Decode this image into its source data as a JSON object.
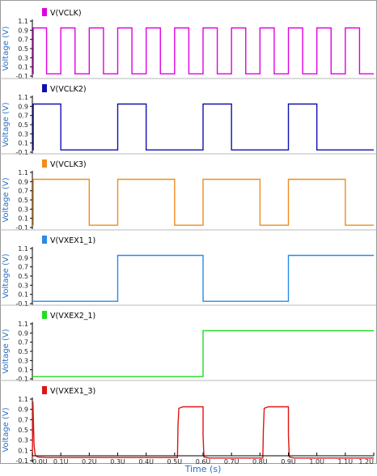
{
  "chart_data": {
    "type": "line",
    "xlabel": "Time (s)",
    "x_ticks": [
      "0.0U",
      "0.1U",
      "0.2U",
      "0.3U",
      "0.4U",
      "0.5U",
      "0.6U",
      "0.7U",
      "0.8U",
      "0.9U",
      "1.0U",
      "1.1U",
      "1.2U"
    ],
    "xlim": [
      0,
      1.2
    ],
    "ylabel": "Voltage (V)",
    "y_ticks": [
      "1.1",
      "0.9",
      "0.7",
      "0.5",
      "0.3",
      "0.1",
      "-0.1"
    ],
    "ylim": [
      -0.1,
      1.1
    ],
    "panels": [
      {
        "name": "V(VCLK)",
        "color": "#e000e0",
        "points": [
          [
            0,
            -0.05
          ],
          [
            0.003,
            -0.05
          ],
          [
            0.003,
            0.95
          ],
          [
            0.05,
            0.95
          ],
          [
            0.05,
            -0.05
          ],
          [
            0.1,
            -0.05
          ],
          [
            0.1,
            0.95
          ],
          [
            0.15,
            0.95
          ],
          [
            0.15,
            -0.05
          ],
          [
            0.2,
            -0.05
          ],
          [
            0.2,
            0.95
          ],
          [
            0.25,
            0.95
          ],
          [
            0.25,
            -0.05
          ],
          [
            0.3,
            -0.05
          ],
          [
            0.3,
            0.95
          ],
          [
            0.35,
            0.95
          ],
          [
            0.35,
            -0.05
          ],
          [
            0.4,
            -0.05
          ],
          [
            0.4,
            0.95
          ],
          [
            0.45,
            0.95
          ],
          [
            0.45,
            -0.05
          ],
          [
            0.5,
            -0.05
          ],
          [
            0.5,
            0.95
          ],
          [
            0.55,
            0.95
          ],
          [
            0.55,
            -0.05
          ],
          [
            0.6,
            -0.05
          ],
          [
            0.6,
            0.95
          ],
          [
            0.65,
            0.95
          ],
          [
            0.65,
            -0.05
          ],
          [
            0.7,
            -0.05
          ],
          [
            0.7,
            0.95
          ],
          [
            0.75,
            0.95
          ],
          [
            0.75,
            -0.05
          ],
          [
            0.8,
            -0.05
          ],
          [
            0.8,
            0.95
          ],
          [
            0.85,
            0.95
          ],
          [
            0.85,
            -0.05
          ],
          [
            0.9,
            -0.05
          ],
          [
            0.9,
            0.95
          ],
          [
            0.95,
            0.95
          ],
          [
            0.95,
            -0.05
          ],
          [
            1.0,
            -0.05
          ],
          [
            1.0,
            0.95
          ],
          [
            1.05,
            0.95
          ],
          [
            1.05,
            -0.05
          ],
          [
            1.1,
            -0.05
          ],
          [
            1.1,
            0.95
          ],
          [
            1.15,
            0.95
          ],
          [
            1.15,
            -0.05
          ],
          [
            1.2,
            -0.05
          ]
        ]
      },
      {
        "name": "V(VCLK2)",
        "color": "#1010b0",
        "points": [
          [
            0,
            -0.05
          ],
          [
            0.003,
            -0.05
          ],
          [
            0.003,
            0.95
          ],
          [
            0.1,
            0.95
          ],
          [
            0.1,
            -0.05
          ],
          [
            0.3,
            -0.05
          ],
          [
            0.3,
            0.95
          ],
          [
            0.4,
            0.95
          ],
          [
            0.4,
            -0.05
          ],
          [
            0.6,
            -0.05
          ],
          [
            0.6,
            0.95
          ],
          [
            0.7,
            0.95
          ],
          [
            0.7,
            -0.05
          ],
          [
            0.9,
            -0.05
          ],
          [
            0.9,
            0.95
          ],
          [
            1.0,
            0.95
          ],
          [
            1.0,
            -0.05
          ],
          [
            1.2,
            -0.05
          ]
        ]
      },
      {
        "name": "V(VCLK3)",
        "color": "#f08c1e",
        "points": [
          [
            0,
            -0.05
          ],
          [
            0.003,
            -0.05
          ],
          [
            0.003,
            0.95
          ],
          [
            0.2,
            0.95
          ],
          [
            0.2,
            -0.05
          ],
          [
            0.3,
            -0.05
          ],
          [
            0.3,
            0.95
          ],
          [
            0.5,
            0.95
          ],
          [
            0.5,
            -0.05
          ],
          [
            0.6,
            -0.05
          ],
          [
            0.6,
            0.95
          ],
          [
            0.8,
            0.95
          ],
          [
            0.8,
            -0.05
          ],
          [
            0.9,
            -0.05
          ],
          [
            0.9,
            0.95
          ],
          [
            1.1,
            0.95
          ],
          [
            1.1,
            -0.05
          ],
          [
            1.2,
            -0.05
          ]
        ]
      },
      {
        "name": "V(VXEX1_1)",
        "color": "#2a8ae6",
        "points": [
          [
            0,
            -0.05
          ],
          [
            0.3,
            -0.05
          ],
          [
            0.3,
            0.95
          ],
          [
            0.6,
            0.95
          ],
          [
            0.6,
            -0.05
          ],
          [
            0.9,
            -0.05
          ],
          [
            0.9,
            0.95
          ],
          [
            1.2,
            0.95
          ]
        ]
      },
      {
        "name": "V(VXEX2_1)",
        "color": "#22dd22",
        "points": [
          [
            0,
            -0.05
          ],
          [
            0.6,
            -0.05
          ],
          [
            0.6,
            0.95
          ],
          [
            1.2,
            0.95
          ]
        ]
      },
      {
        "name": "V(VXEX1_3)",
        "color": "#e01414",
        "points": [
          [
            0,
            -0.05
          ],
          [
            0.002,
            1.05
          ],
          [
            0.006,
            0.2
          ],
          [
            0.01,
            0.0
          ],
          [
            0.02,
            -0.03
          ],
          [
            0.05,
            -0.04
          ],
          [
            0.51,
            -0.04
          ],
          [
            0.512,
            0.6
          ],
          [
            0.515,
            0.92
          ],
          [
            0.53,
            0.95
          ],
          [
            0.6,
            0.95
          ],
          [
            0.6,
            0.4
          ],
          [
            0.603,
            -0.03
          ],
          [
            0.62,
            -0.05
          ],
          [
            0.81,
            -0.05
          ],
          [
            0.812,
            0.5
          ],
          [
            0.815,
            0.92
          ],
          [
            0.83,
            0.95
          ],
          [
            0.9,
            0.95
          ],
          [
            0.9,
            0.4
          ],
          [
            0.903,
            -0.03
          ],
          [
            0.92,
            -0.05
          ],
          [
            1.2,
            -0.05
          ]
        ]
      }
    ]
  }
}
